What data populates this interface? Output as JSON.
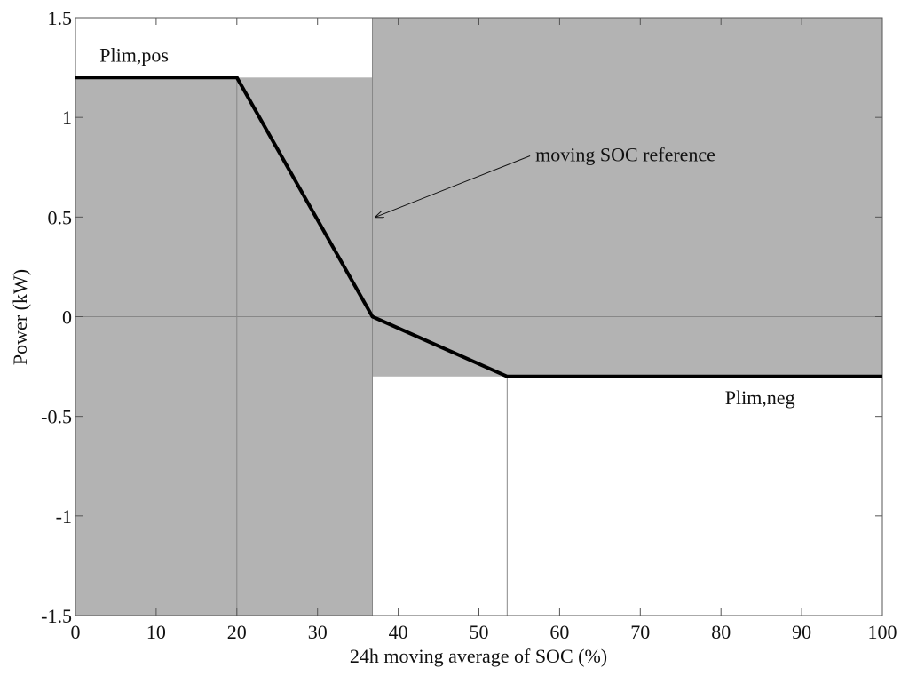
{
  "chart_data": {
    "type": "line",
    "xlabel": "24h moving average of SOC (%)",
    "ylabel": "Power (kW)",
    "xlim": [
      0,
      100
    ],
    "ylim": [
      -1.5,
      1.5
    ],
    "xticks": [
      0,
      10,
      20,
      30,
      40,
      50,
      60,
      70,
      80,
      90,
      100
    ],
    "yticks": [
      -1.5,
      -1,
      -0.5,
      0,
      0.5,
      1,
      1.5
    ],
    "xtick_labels": [
      "0",
      "10",
      "20",
      "30",
      "40",
      "50",
      "60",
      "70",
      "80",
      "90",
      "100"
    ],
    "ytick_labels": [
      "-1.5",
      "-1",
      "-0.5",
      "0",
      "0.5",
      "1",
      "1.5"
    ],
    "grid": false,
    "colors": {
      "shade": "#b3b3b3",
      "line": "#000000",
      "reference": "#888888"
    },
    "series": [
      {
        "x": [
          0,
          20,
          36.8,
          53.5,
          100
        ],
        "y": [
          1.2,
          1.2,
          0,
          -0.3,
          -0.3
        ]
      }
    ],
    "shaded_regions": [
      {
        "x": [
          0,
          36.8
        ],
        "y": [
          -1.5,
          1.2
        ]
      },
      {
        "x": [
          36.8,
          100
        ],
        "y": [
          -0.3,
          1.5
        ]
      }
    ],
    "reference_lines": [
      {
        "orientation": "horizontal",
        "value": 0
      },
      {
        "orientation": "vertical",
        "value": 20,
        "y_range": [
          -1.5,
          1.2
        ]
      },
      {
        "orientation": "vertical",
        "value": 36.8,
        "y_range": [
          -1.5,
          1.5
        ]
      },
      {
        "orientation": "vertical",
        "value": 53.5,
        "y_range": [
          -1.5,
          -0.3
        ]
      }
    ],
    "annotations": [
      {
        "text": "Plim,pos",
        "x": 3,
        "y": 1.28
      },
      {
        "text": "Plim,neg",
        "x": 80.5,
        "y": -0.44
      },
      {
        "text": "moving SOC reference",
        "x": 57,
        "y": 0.78,
        "arrow_to": {
          "x": 37.2,
          "y": 0.5
        }
      }
    ]
  }
}
